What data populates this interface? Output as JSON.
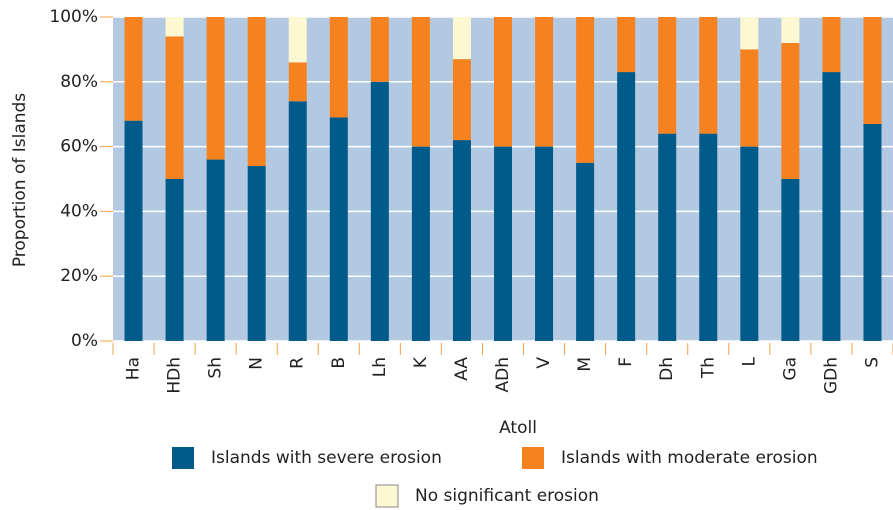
{
  "chart_data": {
    "type": "bar",
    "stacked": true,
    "x_label": "Atoll",
    "y_label": "Proportion of Islands",
    "categories": [
      "Ha",
      "HDh",
      "Sh",
      "N",
      "R",
      "B",
      "Lh",
      "K",
      "AA",
      "ADh",
      "V",
      "M",
      "F",
      "Dh",
      "Th",
      "L",
      "Ga",
      "GDh",
      "S"
    ],
    "series": [
      {
        "name": "Islands with severe erosion",
        "color": "#005b8a",
        "values": [
          68,
          50,
          56,
          54,
          74,
          69,
          80,
          60,
          62,
          60,
          60,
          55,
          83,
          64,
          64,
          60,
          50,
          83,
          67
        ]
      },
      {
        "name": "Islands with moderate erosion",
        "color": "#f5821f",
        "values": [
          32,
          44,
          44,
          46,
          12,
          31,
          20,
          40,
          25,
          40,
          40,
          45,
          17,
          36,
          36,
          30,
          42,
          17,
          33
        ]
      },
      {
        "name": "No significant erosion",
        "color": "#fdf8d2",
        "values": [
          0,
          6,
          0,
          0,
          14,
          0,
          0,
          0,
          13,
          0,
          0,
          0,
          0,
          0,
          0,
          10,
          8,
          0,
          0
        ]
      }
    ],
    "ylim": [
      0,
      100
    ],
    "yticks": [
      {
        "value": 0,
        "label": "0%"
      },
      {
        "value": 20,
        "label": "20%"
      },
      {
        "value": 40,
        "label": "40%"
      },
      {
        "value": 60,
        "label": "60%"
      },
      {
        "value": 80,
        "label": "80%"
      },
      {
        "value": 100,
        "label": "100%"
      }
    ],
    "grid": true
  }
}
